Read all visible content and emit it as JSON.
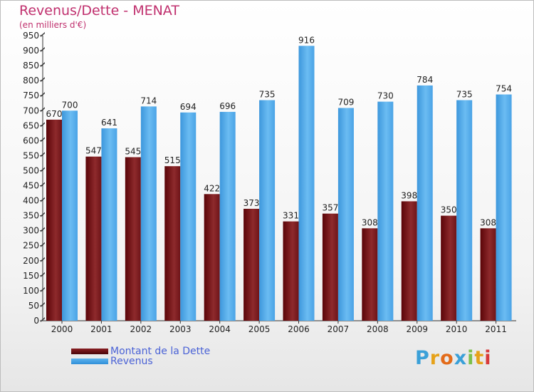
{
  "header": {
    "title": "Revenus/Dette - MENAT",
    "subtitle": "(en milliers d'€)"
  },
  "legend": {
    "items": [
      {
        "label": "Montant de la Dette",
        "color": "#6a0d12"
      },
      {
        "label": "Revenus",
        "color": "#4aa3e6"
      }
    ]
  },
  "logo": {
    "text": "Proxiti"
  },
  "chart_data": {
    "type": "bar",
    "title": "Revenus/Dette - MENAT",
    "ylabel": "(en milliers d'€)",
    "categories": [
      "2000",
      "2001",
      "2002",
      "2003",
      "2004",
      "2005",
      "2006",
      "2007",
      "2008",
      "2009",
      "2010",
      "2011"
    ],
    "series": [
      {
        "name": "Montant de la Dette",
        "color": "#6a0d12",
        "values": [
          670,
          547,
          545,
          515,
          422,
          373,
          331,
          357,
          308,
          398,
          350,
          308
        ]
      },
      {
        "name": "Revenus",
        "color": "#4aa3e6",
        "values": [
          700,
          641,
          714,
          694,
          696,
          735,
          916,
          709,
          730,
          784,
          735,
          754
        ]
      }
    ],
    "ylim": [
      0,
      950
    ],
    "ytick_step": 50,
    "grid": false,
    "legend_position": "bottom-left"
  }
}
